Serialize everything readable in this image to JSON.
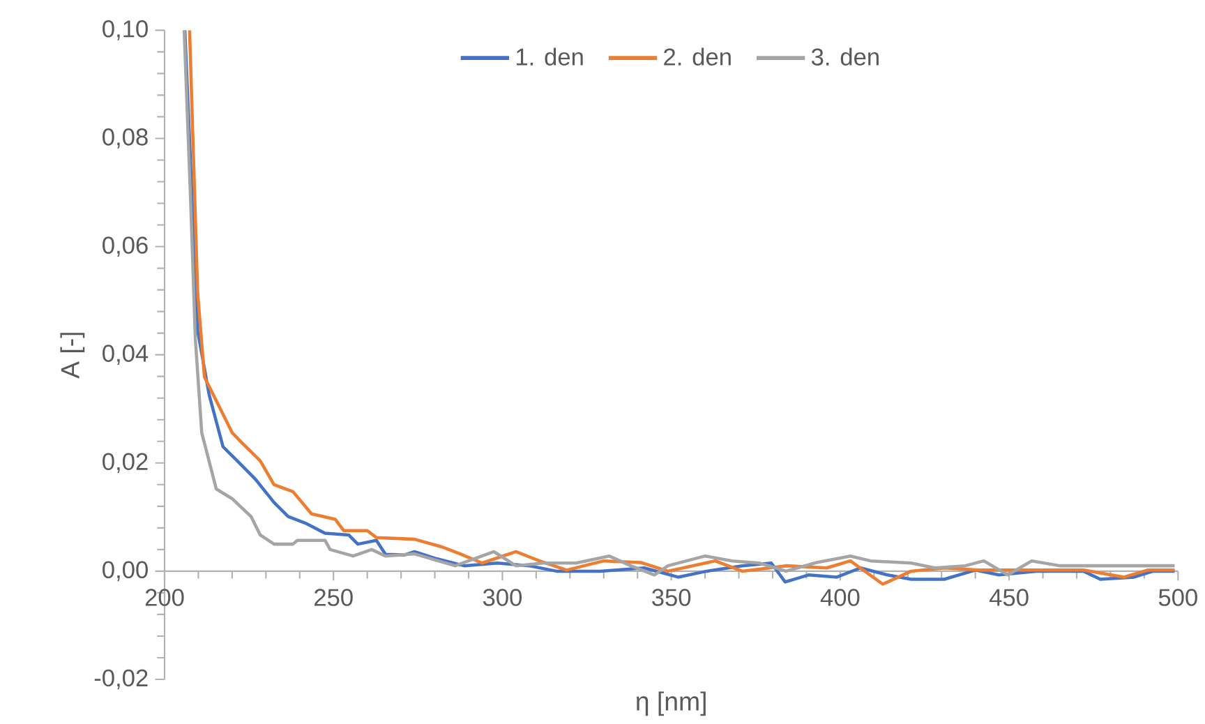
{
  "chart_data": {
    "type": "line",
    "xlabel": "η [nm]",
    "ylabel": "A [-]",
    "xlim": [
      200,
      500
    ],
    "xticks": [
      200,
      250,
      300,
      350,
      400,
      450,
      500
    ],
    "ylim": [
      -0.02,
      0.1
    ],
    "yticks": [
      {
        "value": -0.02,
        "label": "-0,02"
      },
      {
        "value": 0,
        "label": "0,00"
      },
      {
        "value": 0.02,
        "label": "0,02"
      },
      {
        "value": 0.04,
        "label": "0,04"
      },
      {
        "value": 0.06,
        "label": "0,06"
      },
      {
        "value": 0.08,
        "label": "0,08"
      },
      {
        "value": 0.1,
        "label": "0,10"
      }
    ],
    "legend": "top",
    "grid": false,
    "marker": "none",
    "line_style": "solid",
    "series": [
      {
        "name": "1. den",
        "color": "#4472c4",
        "x": [
          206,
          209.8,
          213.2,
          217.3,
          221.5,
          226.9,
          232.4,
          236.6,
          242,
          247.5,
          254.5,
          257.2,
          262.7,
          265.4,
          271,
          274,
          280.5,
          288.7,
          298.5,
          308,
          316,
          329,
          342,
          352,
          360.5,
          371,
          379.6,
          383.7,
          390.6,
          399,
          406,
          414,
          421,
          430.8,
          440,
          447,
          458,
          472,
          477,
          487,
          492.6,
          499
        ],
        "values": [
          0.1,
          0.0444,
          0.0326,
          0.023,
          0.0204,
          0.017,
          0.0127,
          0.0101,
          0.0088,
          0.007,
          0.0067,
          0.005,
          0.0057,
          0.0031,
          0.003,
          0.0036,
          0.0023,
          0.001,
          0.0015,
          0.001,
          0,
          0,
          0.0006,
          -0.0011,
          0,
          0.001,
          0.0015,
          -0.002,
          -0.0007,
          -0.0011,
          0.0006,
          -0.0007,
          -0.0015,
          -0.0015,
          0.0002,
          -0.0007,
          0,
          0,
          -0.0015,
          -0.0011,
          0,
          0
        ]
      },
      {
        "name": "2. den",
        "color": "#ed7d31",
        "x": [
          207.4,
          209.8,
          211.8,
          220,
          222.8,
          228.3,
          232.4,
          238,
          243.5,
          250.5,
          253,
          260,
          262.7,
          274,
          282,
          287.5,
          294,
          304,
          311,
          319,
          330,
          341,
          349,
          363,
          371,
          384,
          396,
          403,
          412.6,
          421,
          430.8,
          441,
          458,
          472,
          484,
          491,
          499
        ],
        "values": [
          0.1,
          0.0514,
          0.0359,
          0.0256,
          0.0238,
          0.0204,
          0.016,
          0.0147,
          0.0106,
          0.0096,
          0.0075,
          0.0075,
          0.0062,
          0.0059,
          0.0045,
          0.0032,
          0.0015,
          0.0036,
          0.0019,
          0.0002,
          0.0019,
          0.0016,
          0,
          0.0019,
          0,
          0.001,
          0.0006,
          0.0019,
          -0.0024,
          0,
          0.0006,
          0.0002,
          0.0002,
          0.0002,
          -0.0011,
          0.0002,
          0.0002
        ]
      },
      {
        "name": "3. den",
        "color": "#a5a5a5",
        "x": [
          205.8,
          207.7,
          209.1,
          211,
          215.3,
          220,
          225.6,
          228.3,
          232.4,
          238,
          239.3,
          247.5,
          249,
          255.8,
          261.3,
          265.4,
          274,
          286,
          297.5,
          304,
          312,
          321.8,
          331.6,
          338,
          345,
          349,
          360,
          368,
          376,
          384,
          393,
          403,
          409,
          421,
          428,
          437,
          442.5,
          449.6,
          456.7,
          465,
          478.6,
          499
        ],
        "values": [
          0.1,
          0.0687,
          0.043,
          0.0256,
          0.0152,
          0.0134,
          0.0101,
          0.0067,
          0.005,
          0.005,
          0.0057,
          0.0057,
          0.004,
          0.0028,
          0.004,
          0.0028,
          0.0032,
          0.001,
          0.0036,
          0.001,
          0.0015,
          0.0015,
          0.0028,
          0.001,
          -0.0007,
          0.001,
          0.0028,
          0.0019,
          0.0015,
          0,
          0.0016,
          0.0028,
          0.0019,
          0.0015,
          0.0006,
          0.001,
          0.0019,
          -0.0007,
          0.0019,
          0.001,
          0.001,
          0.001
        ]
      }
    ]
  }
}
